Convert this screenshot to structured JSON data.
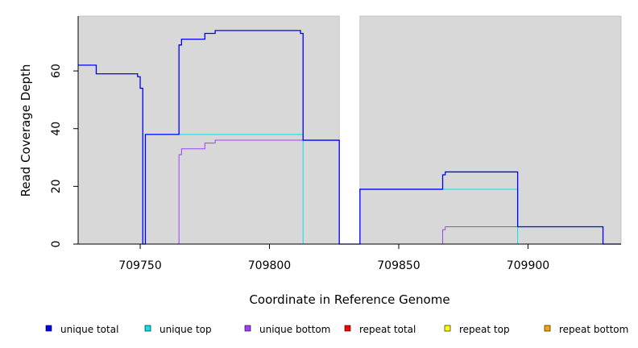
{
  "chart_data": {
    "type": "line",
    "xlabel": "Coordinate in Reference Genome",
    "ylabel": "Read Coverage Depth",
    "xlim": [
      709726,
      709936
    ],
    "ylim": [
      0,
      79
    ],
    "x_ticks": [
      709750,
      709800,
      709850,
      709900
    ],
    "y_ticks": [
      0,
      20,
      40,
      60
    ],
    "x_tick_labels": [
      "709750",
      "709800",
      "709850",
      "709900"
    ],
    "y_tick_labels": [
      "0",
      "20",
      "40",
      "60"
    ],
    "grid": false,
    "legend_position": "bottom",
    "shaded_regions": [
      [
        709726,
        709827
      ],
      [
        709835,
        709936
      ]
    ],
    "colors": {
      "background": "#d8d8d8",
      "unique_total": "#0000ff",
      "unique_top": "#00e5e5",
      "unique_bottom": "#a040ff",
      "repeat_total": "#ff0000",
      "repeat_top": "#ffff00",
      "repeat_bottom": "#ffa500"
    },
    "legend": [
      {
        "key": "unique_total",
        "label": "unique total"
      },
      {
        "key": "unique_top",
        "label": "unique top"
      },
      {
        "key": "unique_bottom",
        "label": "unique bottom"
      },
      {
        "key": "repeat_total",
        "label": "repeat total"
      },
      {
        "key": "repeat_top",
        "label": "repeat top"
      },
      {
        "key": "repeat_bottom",
        "label": "repeat bottom"
      }
    ],
    "series": [
      {
        "key": "repeat_bottom",
        "points": [
          [
            709726,
            0
          ],
          [
            709827,
            0
          ],
          [
            709835,
            0
          ],
          [
            709936,
            0
          ]
        ]
      },
      {
        "key": "repeat_top",
        "points": [
          [
            709726,
            0
          ],
          [
            709827,
            0
          ],
          [
            709835,
            0
          ],
          [
            709936,
            0
          ]
        ]
      },
      {
        "key": "repeat_total",
        "points": [
          [
            709726,
            0
          ],
          [
            709827,
            0
          ],
          [
            709835,
            0
          ],
          [
            709936,
            0
          ]
        ]
      },
      {
        "key": "unique_bottom",
        "points": [
          [
            709726,
            0
          ],
          [
            709765,
            0
          ],
          [
            709765,
            31
          ],
          [
            709766,
            31
          ],
          [
            709766,
            33
          ],
          [
            709775,
            33
          ],
          [
            709775,
            35
          ],
          [
            709779,
            35
          ],
          [
            709779,
            36
          ],
          [
            709827,
            36
          ],
          [
            709827,
            0
          ],
          [
            709835,
            0
          ],
          [
            709867,
            0
          ],
          [
            709867,
            5
          ],
          [
            709868,
            5
          ],
          [
            709868,
            6
          ],
          [
            709929,
            6
          ],
          [
            709929,
            0
          ],
          [
            709936,
            0
          ]
        ]
      },
      {
        "key": "unique_top",
        "points": [
          [
            709726,
            0
          ],
          [
            709752,
            0
          ],
          [
            709752,
            38
          ],
          [
            709813,
            38
          ],
          [
            709813,
            0
          ],
          [
            709827,
            0
          ],
          [
            709835,
            0
          ],
          [
            709835,
            19
          ],
          [
            709896,
            19
          ],
          [
            709896,
            0
          ],
          [
            709936,
            0
          ]
        ]
      },
      {
        "key": "unique_total",
        "points": [
          [
            709726,
            62
          ],
          [
            709733,
            62
          ],
          [
            709733,
            59
          ],
          [
            709749,
            59
          ],
          [
            709749,
            58
          ],
          [
            709750,
            58
          ],
          [
            709750,
            54
          ],
          [
            709751,
            54
          ],
          [
            709751,
            0
          ],
          [
            709752,
            0
          ],
          [
            709752,
            38
          ],
          [
            709765,
            38
          ],
          [
            709765,
            69
          ],
          [
            709766,
            69
          ],
          [
            709766,
            71
          ],
          [
            709775,
            71
          ],
          [
            709775,
            73
          ],
          [
            709779,
            73
          ],
          [
            709779,
            74
          ],
          [
            709812,
            74
          ],
          [
            709812,
            73
          ],
          [
            709813,
            73
          ],
          [
            709813,
            36
          ],
          [
            709827,
            36
          ],
          [
            709827,
            0
          ],
          [
            709835,
            0
          ],
          [
            709835,
            19
          ],
          [
            709867,
            19
          ],
          [
            709867,
            24
          ],
          [
            709868,
            24
          ],
          [
            709868,
            25
          ],
          [
            709896,
            25
          ],
          [
            709896,
            6
          ],
          [
            709929,
            6
          ],
          [
            709929,
            0
          ],
          [
            709936,
            0
          ]
        ]
      }
    ]
  }
}
